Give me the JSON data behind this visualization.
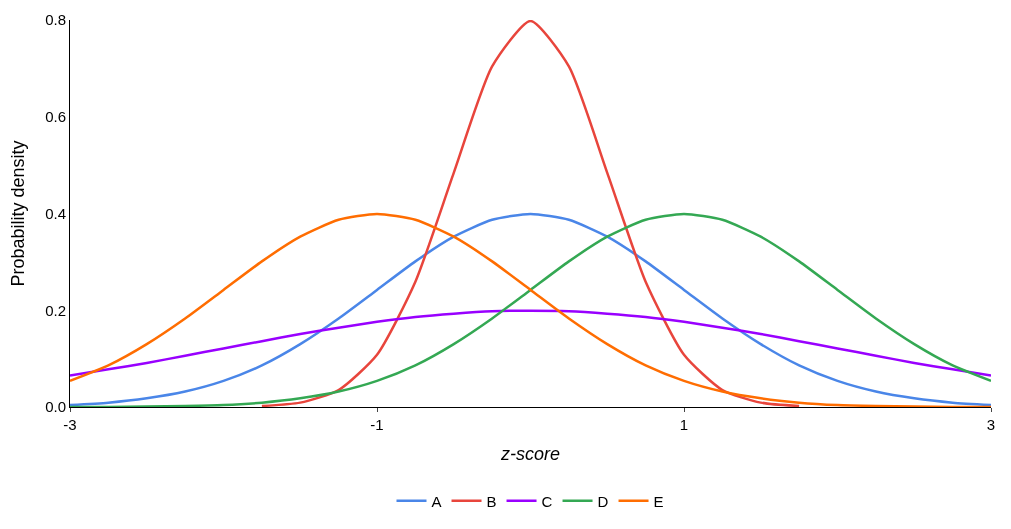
{
  "chart_data": {
    "type": "line",
    "xlabel": "z-score",
    "ylabel": "Probability density",
    "x": [
      -3,
      -2.75,
      -2.5,
      -2.25,
      -2,
      -1.75,
      -1.5,
      -1.25,
      -1,
      -0.75,
      -0.5,
      -0.25,
      0,
      0.25,
      0.5,
      0.75,
      1,
      1.25,
      1.5,
      1.75,
      2,
      2.25,
      2.5,
      2.75,
      3
    ],
    "series": [
      {
        "name": "A",
        "color": "#4a86e8",
        "values": [
          0.004,
          0.009,
          0.018,
          0.032,
          0.054,
          0.086,
          0.13,
          0.183,
          0.242,
          0.301,
          0.352,
          0.387,
          0.399,
          0.387,
          0.352,
          0.301,
          0.242,
          0.183,
          0.13,
          0.086,
          0.054,
          0.032,
          0.018,
          0.009,
          0.004
        ]
      },
      {
        "name": "B",
        "color": "#e8453c",
        "values": [
          null,
          null,
          null,
          null,
          null,
          0.002,
          0.009,
          0.035,
          0.108,
          0.259,
          0.484,
          0.704,
          0.798,
          0.704,
          0.484,
          0.259,
          0.108,
          0.035,
          0.009,
          0.002,
          null,
          null,
          null,
          null,
          null
        ]
      },
      {
        "name": "C",
        "color": "#9900ff",
        "values": [
          0.065,
          0.078,
          0.091,
          0.106,
          0.121,
          0.136,
          0.151,
          0.164,
          0.176,
          0.186,
          0.193,
          0.198,
          0.199,
          0.198,
          0.193,
          0.186,
          0.176,
          0.164,
          0.151,
          0.136,
          0.121,
          0.106,
          0.091,
          0.078,
          0.065
        ]
      },
      {
        "name": "D",
        "color": "#34a853",
        "values": [
          0,
          0,
          0.001,
          0.002,
          0.004,
          0.009,
          0.018,
          0.032,
          0.054,
          0.086,
          0.13,
          0.183,
          0.242,
          0.301,
          0.352,
          0.387,
          0.399,
          0.387,
          0.352,
          0.301,
          0.242,
          0.183,
          0.13,
          0.086,
          0.054
        ]
      },
      {
        "name": "E",
        "color": "#ff6d01",
        "values": [
          0.054,
          0.086,
          0.13,
          0.183,
          0.242,
          0.301,
          0.352,
          0.387,
          0.399,
          0.387,
          0.352,
          0.301,
          0.242,
          0.183,
          0.13,
          0.086,
          0.054,
          0.032,
          0.018,
          0.009,
          0.004,
          0.002,
          0.001,
          0,
          0
        ]
      }
    ],
    "xlim": [
      -3,
      3
    ],
    "xticks": [
      -3,
      -1,
      1,
      3
    ],
    "ylim": [
      0,
      0.8
    ],
    "yticks": [
      {
        "value": 0,
        "label": "0.0"
      },
      0.2,
      0.4,
      0.6,
      0.8
    ],
    "legend": "bottom",
    "marker": "none",
    "line_style": "solid"
  }
}
